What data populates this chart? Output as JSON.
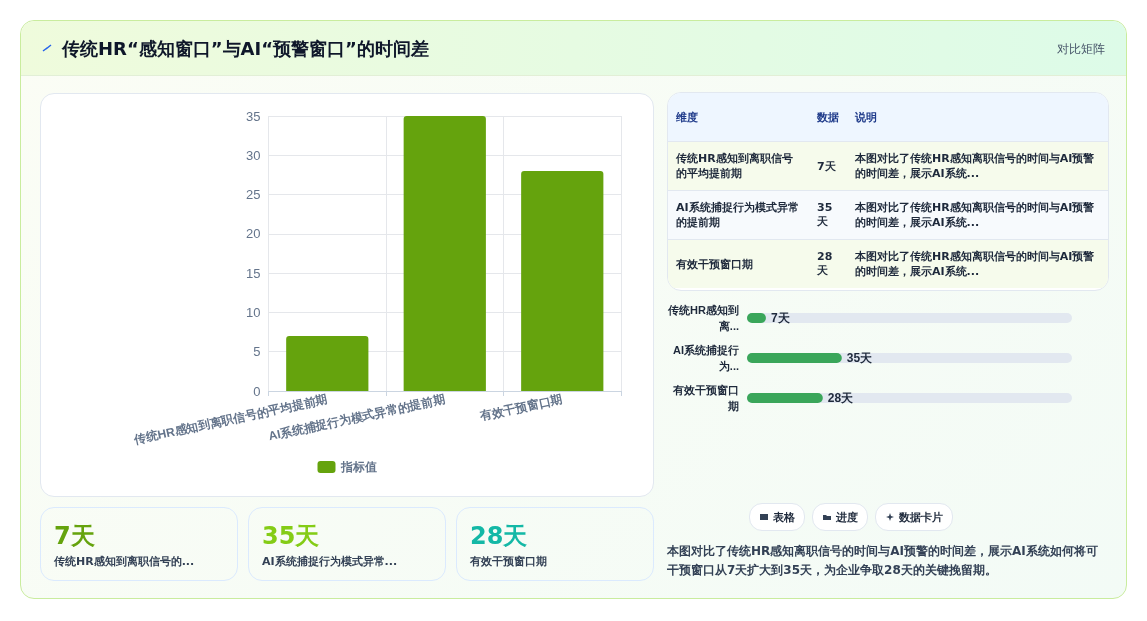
{
  "chart_data": [
    {
      "type": "bar",
      "title": "传统HR“感知窗口”与AI“预警窗口”的时间差",
      "annotations": [
        "对比矩阵"
      ],
      "categories": [
        "传统HR感知到离职信号的平均提前期",
        "AI系统捕捉行为模式异常的提前期",
        "有效干预窗口期"
      ],
      "series": [
        {
          "name": "指标值",
          "color": "#65a30d",
          "values": [
            7,
            35,
            28
          ]
        }
      ],
      "ylim": [
        0,
        35
      ],
      "yticks": [
        0,
        5,
        10,
        15,
        20,
        25,
        30,
        35
      ],
      "grid": true,
      "legend": "bottom"
    },
    {
      "type": "other",
      "categories": [
        "传统HR感知到离职信号的平均提前期",
        "AI系统捕捉行为模式异常的提前期",
        "有效干预窗口期"
      ],
      "values": [
        7,
        35,
        28
      ],
      "value_labels": [
        "7天",
        "35天",
        "28天"
      ],
      "annotations": [
        "维度",
        "数据",
        "说明",
        "本图对比了传统HR感知离职信号的时间与AI预警的时间差，展示AI系统...",
        "本图对比了传统HR感知离职信号的时间与AI预警的时间差，展示AI系统...",
        "本图对比了传统HR感知离职信号的时间与AI预警的时间差，展示AI系统..."
      ]
    },
    {
      "type": "bar",
      "orientation": "horizontal",
      "categories": [
        "传统HR感知到离...",
        "AI系统捕捉行为...",
        "有效干预窗口期"
      ],
      "values": [
        7,
        35,
        28
      ],
      "value_labels": [
        "7天",
        "35天",
        "28天"
      ],
      "color": "#3aa65a",
      "xlim": [
        0,
        120
      ],
      "tick_labels": "y"
    },
    {
      "type": "other",
      "categories": [
        "传统HR感知到离职信号的...",
        "AI系统捕捉行为模式异常...",
        "有效干预窗口期"
      ],
      "values": [
        7,
        35,
        28
      ],
      "value_labels": [
        "7天",
        "35天",
        "28天"
      ],
      "colors": [
        "#65a30d",
        "#84cc16",
        "#14b8a6"
      ]
    },
    {
      "type": "other",
      "annotations": [
        "表格",
        "进度",
        "数据卡片",
        "本图对比了传统HR感知离职信号的时间与AI预警的时间差，展示AI系统如何将可干预窗口从7天扩大到35天，为企业争取28天的关键挽留期。"
      ]
    }
  ]
}
